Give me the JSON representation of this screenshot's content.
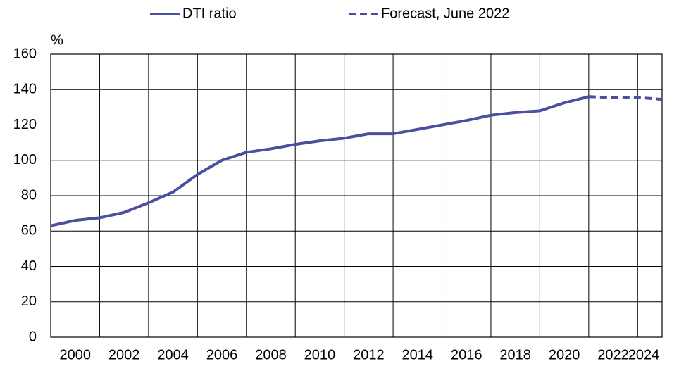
{
  "chart_data": {
    "type": "line",
    "y_label": "%",
    "xlim": [
      1999,
      2024
    ],
    "xticks": [
      2000,
      2002,
      2004,
      2006,
      2008,
      2010,
      2012,
      2014,
      2016,
      2018,
      2020,
      2022,
      2024
    ],
    "ylim": [
      0,
      160
    ],
    "yticks": [
      0,
      20,
      40,
      60,
      80,
      100,
      120,
      140,
      160
    ],
    "grid": true,
    "series": [
      {
        "name": "DTI ratio",
        "color": "#4b4f9f",
        "dashed": false,
        "x": [
          1999,
          2000,
          2001,
          2002,
          2003,
          2004,
          2005,
          2006,
          2007,
          2008,
          2009,
          2010,
          2011,
          2012,
          2013,
          2014,
          2015,
          2016,
          2017,
          2018,
          2019,
          2020,
          2021
        ],
        "values": [
          63,
          66,
          67.5,
          70.5,
          76,
          82,
          92,
          100,
          104.5,
          106.5,
          109,
          111,
          112.5,
          115,
          115,
          117.5,
          120,
          122.5,
          125.5,
          127,
          128,
          132.5,
          136
        ]
      },
      {
        "name": "Forecast, June 2022",
        "color": "#4b4f9f",
        "dashed": true,
        "x": [
          2021,
          2022,
          2023,
          2024
        ],
        "values": [
          136,
          135.5,
          135.5,
          134.5
        ]
      }
    ]
  }
}
